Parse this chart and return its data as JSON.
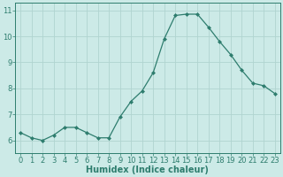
{
  "x": [
    0,
    1,
    2,
    3,
    4,
    5,
    6,
    7,
    8,
    9,
    10,
    11,
    12,
    13,
    14,
    15,
    16,
    17,
    18,
    19,
    20,
    21,
    22,
    23
  ],
  "y": [
    6.3,
    6.1,
    6.0,
    6.2,
    6.5,
    6.5,
    6.3,
    6.1,
    6.1,
    6.9,
    7.5,
    7.9,
    8.6,
    9.9,
    10.8,
    10.85,
    10.85,
    10.35,
    9.8,
    9.3,
    8.7,
    8.2,
    8.1,
    7.8
  ],
  "xlabel": "Humidex (Indice chaleur)",
  "ylim": [
    5.5,
    11.3
  ],
  "xlim": [
    -0.5,
    23.5
  ],
  "yticks": [
    6,
    7,
    8,
    9,
    10,
    11
  ],
  "xticks": [
    0,
    1,
    2,
    3,
    4,
    5,
    6,
    7,
    8,
    9,
    10,
    11,
    12,
    13,
    14,
    15,
    16,
    17,
    18,
    19,
    20,
    21,
    22,
    23
  ],
  "line_color": "#2e7d6e",
  "marker": "D",
  "marker_size": 2.0,
  "bg_color": "#cceae7",
  "grid_color": "#b0d4d0",
  "tick_fontsize": 6.0,
  "xlabel_fontsize": 7.0,
  "xlabel_bold": true
}
